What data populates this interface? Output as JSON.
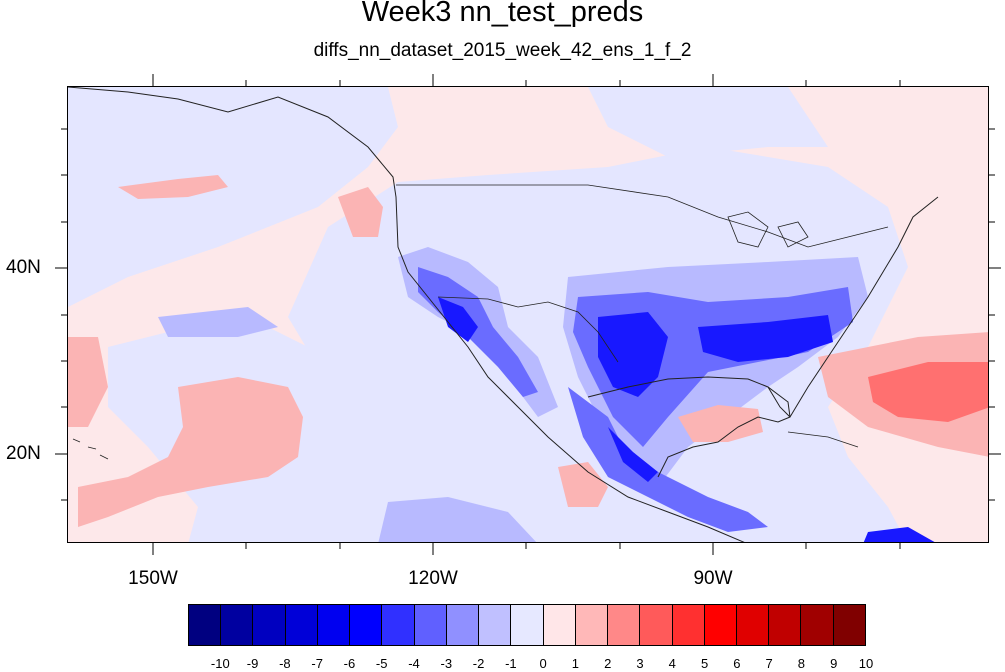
{
  "figure": {
    "title": "Week3 nn_test_preds",
    "subtitle": "diffs_nn_dataset_2015_week_42_ens_1_f_2"
  },
  "map": {
    "projection": "cylindrical-equidistant",
    "lon_range": [
      -160,
      -61
    ],
    "lat_range": [
      11,
      59
    ],
    "lon_tick_labels": [
      {
        "lon": -150,
        "label": "150W"
      },
      {
        "lon": -120,
        "label": "120W"
      },
      {
        "lon": -90,
        "label": "90W"
      }
    ],
    "lat_tick_labels": [
      {
        "lat": 40,
        "label": "40N"
      },
      {
        "lat": 20,
        "label": "20N"
      }
    ],
    "background_value_color": "#fde8ea",
    "feature_summary": [
      {
        "region": "Southwest US / Baja / Western Mexico",
        "sign": "negative",
        "strength": "-4 to -6"
      },
      {
        "region": "South-central and Southeast US",
        "sign": "negative",
        "strength": "-3 to -6"
      },
      {
        "region": "Central Mexico / Central America",
        "sign": "negative",
        "strength": "-4 to -6"
      },
      {
        "region": "Western Atlantic near 28N 65W",
        "sign": "positive",
        "strength": "+3 to +4"
      },
      {
        "region": "Subtropical Eastern Pacific near Hawaii",
        "sign": "positive",
        "strength": "+1 to +2"
      }
    ]
  },
  "colorbar": {
    "labels": [
      "-10",
      "-9",
      "-8",
      "-7",
      "-6",
      "-5",
      "-4",
      "-3",
      "-2",
      "-1",
      "0",
      "1",
      "2",
      "3",
      "4",
      "5",
      "6",
      "7",
      "8",
      "9",
      "10"
    ],
    "colors": [
      "#000080",
      "#0000a0",
      "#0000c0",
      "#0000d8",
      "#0000f0",
      "#0000ff",
      "#3030ff",
      "#6060ff",
      "#9090ff",
      "#c0c0ff",
      "#e6e8ff",
      "#ffe6e8",
      "#ffb8b8",
      "#ff8888",
      "#ff5a5a",
      "#ff3030",
      "#ff0000",
      "#e00000",
      "#c00000",
      "#a00000",
      "#800000"
    ]
  }
}
